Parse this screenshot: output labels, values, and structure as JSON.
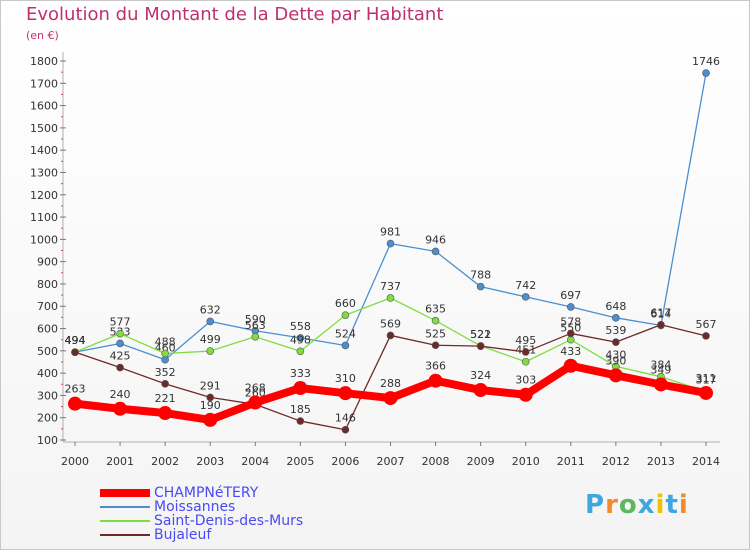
{
  "chart_data": {
    "type": "line",
    "title": "Evolution du Montant de la Dette par Habitant",
    "ylabel": "(en €)",
    "x": [
      "2000",
      "2001",
      "2002",
      "2003",
      "2004",
      "2005",
      "2006",
      "2007",
      "2008",
      "2009",
      "2010",
      "2011",
      "2012",
      "2013",
      "2014"
    ],
    "ylim": [
      100,
      1800
    ],
    "yticks": [
      "100",
      "200",
      "300",
      "400",
      "500",
      "600",
      "700",
      "800",
      "900",
      "1000",
      "1100",
      "1200",
      "1300",
      "1400",
      "1500",
      "1600",
      "1700",
      "1800"
    ],
    "grid": false,
    "legend_position": "bottom-left",
    "series": [
      {
        "name": "CHAMPNéTERY",
        "color": "#ff0000",
        "values": [
          263,
          240,
          221,
          190,
          268,
          333,
          310,
          288,
          366,
          324,
          303,
          433,
          390,
          349,
          311
        ]
      },
      {
        "name": "Moissannes",
        "color": "#4a8fd0",
        "values": [
          494,
          533,
          460,
          632,
          590,
          558,
          524,
          981,
          946,
          788,
          742,
          697,
          648,
          614,
          1746
        ]
      },
      {
        "name": "Saint-Denis-des-Murs",
        "color": "#80dd40",
        "values": [
          494,
          577,
          488,
          499,
          563,
          498,
          660,
          737,
          635,
          522,
          451,
          550,
          430,
          384,
          317
        ]
      },
      {
        "name": "Bujaleuf",
        "color": "#6e2a2a",
        "values": [
          494,
          425,
          352,
          291,
          260,
          185,
          146,
          569,
          525,
          521,
          495,
          578,
          539,
          617,
          567
        ]
      }
    ]
  },
  "branding": {
    "logo_text": "Proxiti",
    "logo_colors": [
      "#3fa7e0",
      "#f28c28",
      "#5cb85c",
      "#3fa7e0",
      "#f2c200",
      "#3fa7e0",
      "#f28c28"
    ]
  }
}
